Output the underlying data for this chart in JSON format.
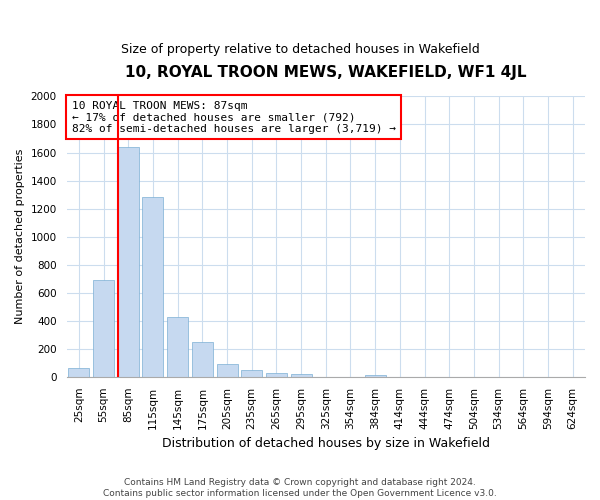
{
  "title": "10, ROYAL TROON MEWS, WAKEFIELD, WF1 4JL",
  "subtitle": "Size of property relative to detached houses in Wakefield",
  "xlabel": "Distribution of detached houses by size in Wakefield",
  "ylabel": "Number of detached properties",
  "bar_labels": [
    "25sqm",
    "55sqm",
    "85sqm",
    "115sqm",
    "145sqm",
    "175sqm",
    "205sqm",
    "235sqm",
    "265sqm",
    "295sqm",
    "325sqm",
    "354sqm",
    "384sqm",
    "414sqm",
    "444sqm",
    "474sqm",
    "504sqm",
    "534sqm",
    "564sqm",
    "594sqm",
    "624sqm"
  ],
  "bar_values": [
    65,
    690,
    1640,
    1285,
    430,
    250,
    90,
    50,
    30,
    20,
    0,
    0,
    15,
    0,
    0,
    0,
    0,
    0,
    0,
    0,
    0
  ],
  "bar_color": "#c6d9f0",
  "bar_edge_color": "#7bafd4",
  "redline_index": 2,
  "annotation_line1": "10 ROYAL TROON MEWS: 87sqm",
  "annotation_line2": "← 17% of detached houses are smaller (792)",
  "annotation_line3": "82% of semi-detached houses are larger (3,719) →",
  "ylim": [
    0,
    2000
  ],
  "yticks": [
    0,
    200,
    400,
    600,
    800,
    1000,
    1200,
    1400,
    1600,
    1800,
    2000
  ],
  "footer_line1": "Contains HM Land Registry data © Crown copyright and database right 2024.",
  "footer_line2": "Contains public sector information licensed under the Open Government Licence v3.0.",
  "background_color": "#ffffff",
  "grid_color": "#ccddee",
  "title_fontsize": 11,
  "subtitle_fontsize": 9,
  "annotation_fontsize": 8,
  "ylabel_fontsize": 8,
  "xlabel_fontsize": 9,
  "tick_fontsize": 7.5,
  "footer_fontsize": 6.5
}
